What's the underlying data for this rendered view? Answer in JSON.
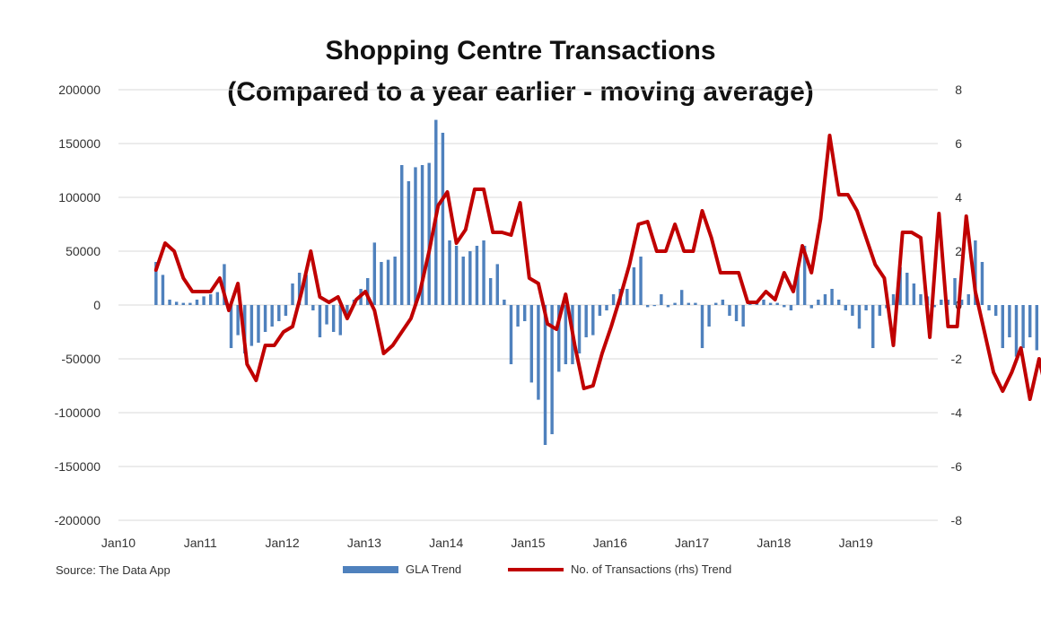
{
  "chart_data": {
    "type": "bar+line",
    "title": "Shopping Centre Transactions",
    "subtitle": "(Compared to a year earlier - moving average)",
    "source": "Source: The Data App",
    "x_tick_labels": [
      "Jan10",
      "Jan11",
      "Jan12",
      "Jan13",
      "Jan14",
      "Jan15",
      "Jan16",
      "Jan17",
      "Jan18",
      "Jan19"
    ],
    "y_left_tick_labels": [
      "200000",
      "150000",
      "100000",
      "50000",
      "0",
      "-50000",
      "-100000",
      "-150000",
      "-200000"
    ],
    "y_right_tick_labels": [
      "8",
      "6",
      "4",
      "2",
      "0",
      "-2",
      "-4",
      "-6",
      "-8"
    ],
    "y_left_range": [
      -200000,
      200000
    ],
    "y_right_range": [
      -8,
      8
    ],
    "grid": true,
    "legend_position": "bottom",
    "colors": {
      "bars": "#4f81bd",
      "line": "#c00000"
    },
    "series": [
      {
        "name": "GLA Trend",
        "axis": "left",
        "type": "bar",
        "start": "2010-06",
        "values": [
          40000,
          28000,
          5000,
          3000,
          2000,
          2000,
          5000,
          8000,
          10000,
          12000,
          38000,
          -40000,
          -28000,
          -45000,
          -38000,
          -35000,
          -25000,
          -20000,
          -15000,
          -10000,
          20000,
          30000,
          28000,
          -5000,
          -30000,
          -18000,
          -25000,
          -28000,
          -10000,
          5000,
          15000,
          25000,
          58000,
          40000,
          42000,
          45000,
          130000,
          115000,
          128000,
          130000,
          132000,
          172000,
          160000,
          60000,
          55000,
          45000,
          50000,
          55000,
          60000,
          25000,
          38000,
          5000,
          -55000,
          -20000,
          -15000,
          -72000,
          -88000,
          -130000,
          -120000,
          -62000,
          -55000,
          -55000,
          -45000,
          -30000,
          -28000,
          -10000,
          -5000,
          10000,
          15000,
          15000,
          35000,
          45000,
          -2000,
          -1000,
          10000,
          -2000,
          2000,
          14000,
          2000,
          2000,
          -40000,
          -20000,
          2000,
          5000,
          -10000,
          -15000,
          -20000,
          2000,
          2000,
          5000,
          2000,
          2000,
          -2000,
          -5000,
          35000,
          55000,
          -3000,
          5000,
          10000,
          15000,
          5000,
          -5000,
          -10000,
          -22000,
          -5000,
          -40000,
          -10000,
          -3000,
          10000,
          35000,
          30000,
          20000,
          10000,
          8000,
          -2000,
          5000,
          5000,
          25000,
          5000,
          10000,
          60000,
          40000,
          -5000,
          -10000,
          -40000,
          -30000,
          -48000,
          -40000,
          -30000,
          -42000,
          -20000,
          -15000,
          -60000,
          -5000,
          -3000,
          -22000,
          -15000,
          -10000,
          -58000,
          -2000,
          -20000,
          -5000,
          -8000,
          12000,
          -5000
        ]
      },
      {
        "name": "No. of Transactions  (rhs) Trend",
        "axis": "right",
        "type": "line",
        "start": "2010-06",
        "values": [
          1.3,
          2.3,
          2.0,
          1.0,
          0.5,
          0.5,
          0.5,
          1.0,
          -0.2,
          0.8,
          -2.2,
          -2.8,
          -1.5,
          -1.5,
          -1.0,
          -0.8,
          0.5,
          2.0,
          0.3,
          0.1,
          0.3,
          -0.5,
          0.2,
          0.5,
          -0.2,
          -1.8,
          -1.5,
          -1.0,
          -0.5,
          0.5,
          2.0,
          3.7,
          4.2,
          2.3,
          2.8,
          4.3,
          4.3,
          2.7,
          2.7,
          2.6,
          3.8,
          1.0,
          0.8,
          -0.7,
          -0.9,
          0.4,
          -1.5,
          -3.1,
          -3.0,
          -1.8,
          -0.8,
          0.3,
          1.5,
          3.0,
          3.1,
          2.0,
          2.0,
          3.0,
          2.0,
          2.0,
          3.5,
          2.5,
          1.2,
          1.2,
          1.2,
          0.1,
          0.1,
          0.5,
          0.2,
          1.2,
          0.5,
          2.2,
          1.2,
          3.2,
          6.3,
          4.1,
          4.1,
          3.5,
          2.5,
          1.5,
          1.0,
          -1.5,
          2.7,
          2.7,
          2.5,
          -1.2,
          3.4,
          -0.8,
          -0.8,
          3.3,
          0.5,
          -1.0,
          -2.5,
          -3.2,
          -2.5,
          -1.6,
          -3.5,
          -2.0,
          -3.5,
          -1.0,
          1.6,
          1.7,
          1.0,
          -1.3,
          1.7,
          1.0,
          1.7,
          1.0,
          -1.6
        ]
      }
    ]
  },
  "legend": {
    "bars_label": "GLA Trend",
    "line_label": "No. of Transactions  (rhs) Trend"
  }
}
